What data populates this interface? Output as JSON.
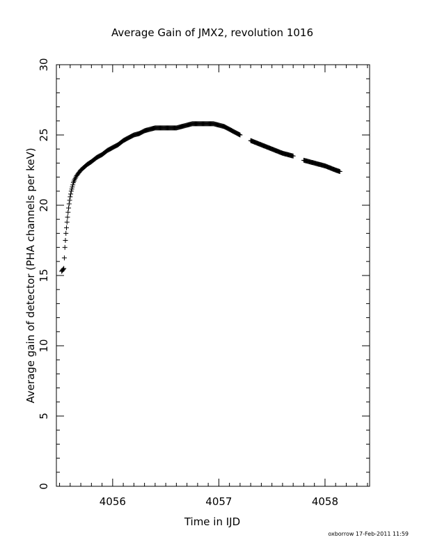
{
  "chart_data": {
    "type": "scatter",
    "title": "Average Gain of JMX2, revolution 1016",
    "xlabel": "Time in IJD",
    "ylabel": "Average gain of detector (PHA channels per keV)",
    "xlim": [
      4055.47,
      4058.42
    ],
    "ylim": [
      0,
      30
    ],
    "xticks": [
      "4056",
      "4057",
      "4058"
    ],
    "yticks": [
      "0",
      "5",
      "10",
      "15",
      "20",
      "25",
      "30"
    ],
    "grid": false,
    "marker": "plus",
    "series": [
      {
        "x": [
          4055.52,
          4055.53,
          4055.54,
          4055.55,
          4055.56,
          4055.57,
          4055.58,
          4055.59,
          4055.6,
          4055.61,
          4055.62,
          4055.63,
          4055.64,
          4055.66,
          4055.68,
          4055.7,
          4055.73,
          4055.76,
          4055.8,
          4055.85,
          4055.9,
          4055.95,
          4056.0,
          4056.05,
          4056.1,
          4056.15,
          4056.2,
          4056.25,
          4056.3,
          4056.35,
          4056.4,
          4056.45,
          4056.5,
          4056.55,
          4056.6,
          4056.65,
          4056.7,
          4056.75,
          4056.8,
          4056.85,
          4056.9,
          4056.95,
          4057.0,
          4057.05,
          4057.1,
          4057.15,
          4057.2,
          4057.3,
          4057.4,
          4057.5,
          4057.6,
          4057.7,
          4057.8,
          4057.9,
          4058.0,
          4058.1,
          4058.14
        ],
        "y": [
          15.3,
          15.4,
          15.5,
          17.0,
          18.0,
          18.8,
          19.5,
          20.1,
          20.6,
          21.0,
          21.3,
          21.6,
          21.8,
          22.1,
          22.3,
          22.5,
          22.7,
          22.9,
          23.1,
          23.4,
          23.6,
          23.9,
          24.1,
          24.3,
          24.6,
          24.8,
          25.0,
          25.1,
          25.3,
          25.4,
          25.5,
          25.5,
          25.5,
          25.5,
          25.5,
          25.6,
          25.7,
          25.8,
          25.8,
          25.8,
          25.8,
          25.8,
          25.7,
          25.6,
          25.4,
          25.2,
          25.0,
          24.6,
          24.3,
          24.0,
          23.7,
          23.5,
          23.2,
          23.0,
          22.8,
          22.5,
          22.4
        ]
      }
    ]
  },
  "footer": "oxborrow 17-Feb-2011 11:59"
}
